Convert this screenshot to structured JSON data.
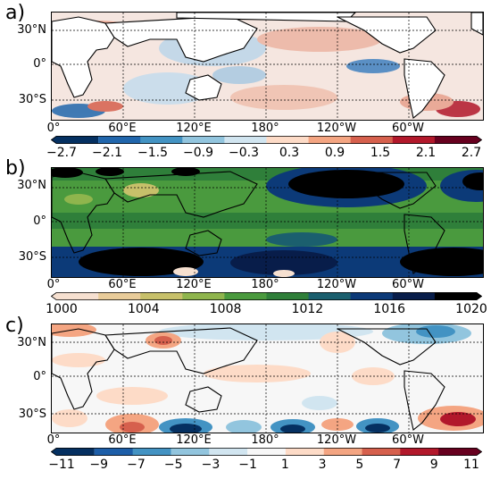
{
  "panels": [
    {
      "letter": "a)",
      "lat_labels": [
        "30°N",
        "0°",
        "30°S"
      ],
      "lon_labels": [
        "0°",
        "60°E",
        "120°E",
        "180°",
        "120°W",
        "60°W"
      ],
      "colorbar": {
        "colors": [
          "#053061",
          "#2166ac",
          "#4393c3",
          "#92c5de",
          "#d1e5f0",
          "#fddbc7",
          "#f4a582",
          "#d6604d",
          "#b2182b",
          "#67001f"
        ],
        "labels": [
          "−2.7",
          "−2.1",
          "−1.5",
          "−0.9",
          "−0.3",
          "0.3",
          "0.9",
          "1.5",
          "2.1",
          "2.7"
        ]
      }
    },
    {
      "letter": "b)",
      "lat_labels": [
        "30°N",
        "0°",
        "30°S"
      ],
      "lon_labels": [
        "0°",
        "60°E",
        "120°E",
        "180°",
        "120°W",
        "60°W"
      ],
      "colorbar": {
        "colors": [
          "#f6e0d0",
          "#e9cc9a",
          "#c7c06a",
          "#8fb54d",
          "#4a9a3e",
          "#2f7f3a",
          "#1b5f6e",
          "#0c3a78",
          "#081d4a",
          "#000000"
        ],
        "labels": [
          "1000",
          "1004",
          "1008",
          "1012",
          "1016",
          "1020"
        ]
      }
    },
    {
      "letter": "c)",
      "lat_labels": [
        "30°N",
        "0°",
        "30°S"
      ],
      "lon_labels": [
        "0°",
        "60°E",
        "120°E",
        "180°",
        "120°W",
        "60°W"
      ],
      "colorbar": {
        "colors": [
          "#053061",
          "#1d5ea8",
          "#4393c3",
          "#92c5de",
          "#d1e5f0",
          "#f7f7f7",
          "#fddbc7",
          "#f4a582",
          "#d6604d",
          "#b2182b",
          "#67001f"
        ],
        "labels": [
          "−11",
          "−9",
          "−7",
          "−5",
          "−3",
          "−1",
          "1",
          "3",
          "5",
          "7",
          "9",
          "11"
        ]
      }
    }
  ],
  "map_fill": {
    "a": {
      "ocean": "#f3e4de",
      "warm": "#e8a08c",
      "cool": "#a9c9e2",
      "hot": "#b2182b",
      "cold": "#2166ac"
    },
    "b": {
      "ocean": "#4a9a3e",
      "dark": "#000000",
      "navy": "#0c3a78",
      "teal": "#1b5f6e",
      "light": "#c7c06a"
    },
    "c": {
      "ocean": "#f7f7f7",
      "red": "#d6604d",
      "pink": "#fddbc7",
      "blue": "#4393c3",
      "navy": "#053061"
    }
  }
}
